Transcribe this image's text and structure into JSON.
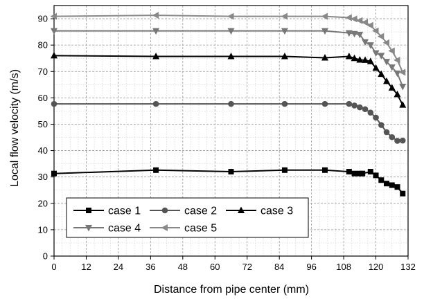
{
  "chart_data": {
    "type": "line",
    "title": "",
    "xlabel": "Distance from pipe center (mm)",
    "ylabel": "Local flow velocity (m/s)",
    "xlim": [
      0,
      132
    ],
    "ylim": [
      0,
      95
    ],
    "xticks": [
      0,
      12,
      24,
      36,
      48,
      60,
      72,
      84,
      96,
      108,
      120,
      132
    ],
    "yticks": [
      0,
      10,
      20,
      30,
      40,
      50,
      60,
      70,
      80,
      90
    ],
    "grid": true,
    "legend": "bottom-left",
    "series": [
      {
        "name": "case 1",
        "color": "#000000",
        "marker": "square",
        "points": [
          [
            0,
            31.3
          ],
          [
            38,
            32.6
          ],
          [
            66,
            32.0
          ],
          [
            86,
            32.6
          ],
          [
            101,
            32.6
          ],
          [
            110,
            32.0
          ],
          [
            112,
            31.3
          ],
          [
            114,
            31.3
          ],
          [
            115,
            31.3
          ],
          [
            118,
            32.0
          ],
          [
            120,
            30.6
          ],
          [
            122,
            28.8
          ],
          [
            124,
            27.5
          ],
          [
            126,
            26.9
          ],
          [
            128,
            26.2
          ],
          [
            130,
            23.7
          ]
        ]
      },
      {
        "name": "case 2",
        "color": "#555555",
        "marker": "circle",
        "points": [
          [
            0,
            57.7
          ],
          [
            38,
            57.7
          ],
          [
            66,
            57.7
          ],
          [
            86,
            57.7
          ],
          [
            101,
            57.7
          ],
          [
            110,
            57.7
          ],
          [
            112,
            57.1
          ],
          [
            114,
            56.4
          ],
          [
            116,
            55.7
          ],
          [
            118,
            54.4
          ],
          [
            120,
            52.5
          ],
          [
            122,
            49.7
          ],
          [
            124,
            47.0
          ],
          [
            126,
            45.1
          ],
          [
            128,
            43.7
          ],
          [
            130,
            43.8
          ]
        ]
      },
      {
        "name": "case 3",
        "color": "#000000",
        "marker": "triangle-up",
        "points": [
          [
            0,
            76.0
          ],
          [
            38,
            75.7
          ],
          [
            66,
            75.7
          ],
          [
            86,
            75.7
          ],
          [
            101,
            75.2
          ],
          [
            110,
            75.7
          ],
          [
            112,
            75.0
          ],
          [
            114,
            74.4
          ],
          [
            116,
            74.3
          ],
          [
            118,
            73.8
          ],
          [
            120,
            71.3
          ],
          [
            122,
            69.0
          ],
          [
            124,
            66.3
          ],
          [
            126,
            63.8
          ],
          [
            128,
            61.3
          ],
          [
            130,
            57.3
          ]
        ]
      },
      {
        "name": "case 4",
        "color": "#777777",
        "marker": "triangle-down",
        "points": [
          [
            0,
            85.4
          ],
          [
            38,
            85.4
          ],
          [
            66,
            85.4
          ],
          [
            86,
            85.4
          ],
          [
            101,
            85.4
          ],
          [
            110,
            84.6
          ],
          [
            112,
            84.3
          ],
          [
            114,
            84.0
          ],
          [
            116,
            81.2
          ],
          [
            118,
            80.0
          ],
          [
            120,
            77.0
          ],
          [
            122,
            76.0
          ],
          [
            124,
            73.7
          ],
          [
            126,
            71.6
          ],
          [
            128,
            69.3
          ],
          [
            130,
            64.3
          ]
        ]
      },
      {
        "name": "case 5",
        "color": "#888888",
        "marker": "triangle-left",
        "points": [
          [
            0,
            90.9
          ],
          [
            38,
            91.3
          ],
          [
            66,
            90.9
          ],
          [
            86,
            90.9
          ],
          [
            101,
            90.9
          ],
          [
            110,
            90.4
          ],
          [
            112,
            89.9
          ],
          [
            114,
            89.3
          ],
          [
            116,
            88.6
          ],
          [
            118,
            87.5
          ],
          [
            120,
            85.4
          ],
          [
            122,
            83.3
          ],
          [
            124,
            80.9
          ],
          [
            126,
            77.8
          ],
          [
            128,
            74.3
          ],
          [
            130,
            69.7
          ]
        ]
      }
    ]
  }
}
